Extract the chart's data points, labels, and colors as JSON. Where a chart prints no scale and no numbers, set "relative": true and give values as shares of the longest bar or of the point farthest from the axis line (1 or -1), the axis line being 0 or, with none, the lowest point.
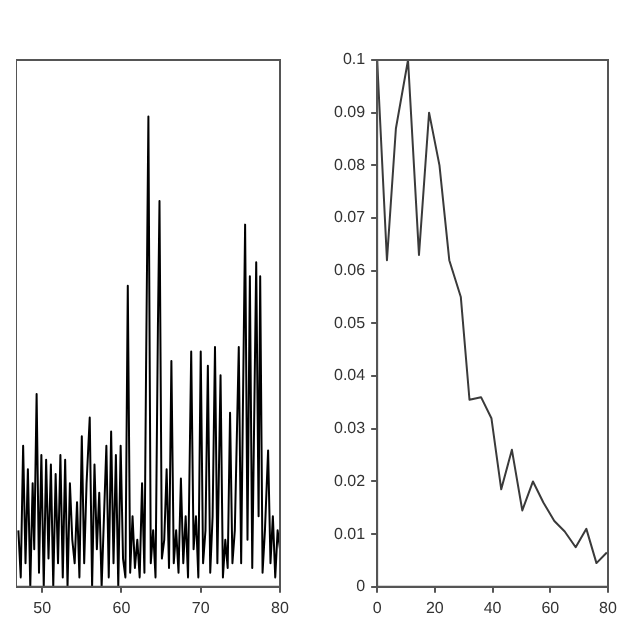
{
  "chart_data": [
    {
      "type": "line",
      "relative": true,
      "tick_labels": "x",
      "marker": "none",
      "xlim": [
        46.7,
        80
      ],
      "xticks": [
        50,
        60,
        70,
        80
      ],
      "series": [
        {
          "color": "#000000",
          "x": [
            47.0,
            47.3,
            47.6,
            47.9,
            48.2,
            48.5,
            48.8,
            49.0,
            49.3,
            49.6,
            49.9,
            50.2,
            50.5,
            50.8,
            51.1,
            51.4,
            51.7,
            52.0,
            52.3,
            52.6,
            52.9,
            53.2,
            53.5,
            53.8,
            54.1,
            54.4,
            54.7,
            55.0,
            55.3,
            55.6,
            56.0,
            56.3,
            56.6,
            56.9,
            57.2,
            57.5,
            57.8,
            58.1,
            58.4,
            58.7,
            59.0,
            59.3,
            59.6,
            59.9,
            60.2,
            60.5,
            60.8,
            61.1,
            61.4,
            61.7,
            62.0,
            62.3,
            62.6,
            62.9,
            63.1,
            63.4,
            63.7,
            64.0,
            64.3,
            64.6,
            64.8,
            65.1,
            65.4,
            65.7,
            66.0,
            66.3,
            66.6,
            66.9,
            67.2,
            67.5,
            67.8,
            68.1,
            68.4,
            68.8,
            69.1,
            69.4,
            69.7,
            70.0,
            70.3,
            70.6,
            70.9,
            71.2,
            71.5,
            71.8,
            72.1,
            72.5,
            72.8,
            73.1,
            73.4,
            73.7,
            74.0,
            74.3,
            74.8,
            75.1,
            75.3,
            75.6,
            75.9,
            76.2,
            76.5,
            77.0,
            77.3,
            77.5,
            77.8,
            78.1,
            78.5,
            78.8,
            79.1,
            79.4,
            79.7,
            80.0
          ],
          "values": [
            0.12,
            0.02,
            0.3,
            0.05,
            0.25,
            0.0,
            0.22,
            0.08,
            0.41,
            0.03,
            0.28,
            0.0,
            0.27,
            0.06,
            0.26,
            0.0,
            0.24,
            0.05,
            0.28,
            0.02,
            0.27,
            0.0,
            0.22,
            0.1,
            0.05,
            0.18,
            0.02,
            0.32,
            0.05,
            0.22,
            0.36,
            0.0,
            0.26,
            0.08,
            0.2,
            0.0,
            0.15,
            0.3,
            0.02,
            0.33,
            0.05,
            0.28,
            0.0,
            0.3,
            0.06,
            0.02,
            0.64,
            0.03,
            0.15,
            0.04,
            0.1,
            0.02,
            0.22,
            0.03,
            0.45,
            1.0,
            0.05,
            0.12,
            0.02,
            0.55,
            0.82,
            0.06,
            0.1,
            0.25,
            0.04,
            0.48,
            0.05,
            0.12,
            0.03,
            0.23,
            0.05,
            0.15,
            0.02,
            0.5,
            0.08,
            0.15,
            0.02,
            0.5,
            0.05,
            0.12,
            0.47,
            0.03,
            0.15,
            0.51,
            0.05,
            0.45,
            0.02,
            0.1,
            0.04,
            0.37,
            0.05,
            0.12,
            0.51,
            0.05,
            0.35,
            0.77,
            0.1,
            0.66,
            0.04,
            0.69,
            0.15,
            0.66,
            0.03,
            0.12,
            0.29,
            0.05,
            0.15,
            0.02,
            0.12,
            0.08
          ]
        }
      ]
    },
    {
      "type": "line",
      "marker": "none",
      "xlim": [
        0,
        80
      ],
      "xticks": [
        0,
        20,
        40,
        60,
        80
      ],
      "ylim": [
        0,
        0.1
      ],
      "yticks": [
        0,
        0.01,
        0.02,
        0.03,
        0.04,
        0.05,
        0.06,
        0.07,
        0.08,
        0.09,
        0.1
      ],
      "series": [
        {
          "color": "#3a3a3a",
          "x": [
            0,
            3.4,
            6.5,
            10.7,
            14.5,
            18,
            21.6,
            25,
            29,
            32,
            36,
            39.6,
            43,
            46.7,
            50.3,
            54,
            57.6,
            61.4,
            65,
            68.8,
            72.5,
            76,
            79.6
          ],
          "values": [
            0.1,
            0.062,
            0.087,
            0.1,
            0.063,
            0.09,
            0.08,
            0.062,
            0.055,
            0.0355,
            0.036,
            0.032,
            0.0185,
            0.026,
            0.0145,
            0.02,
            0.016,
            0.0125,
            0.0105,
            0.0075,
            0.011,
            0.0045,
            0.0065
          ]
        }
      ]
    }
  ]
}
